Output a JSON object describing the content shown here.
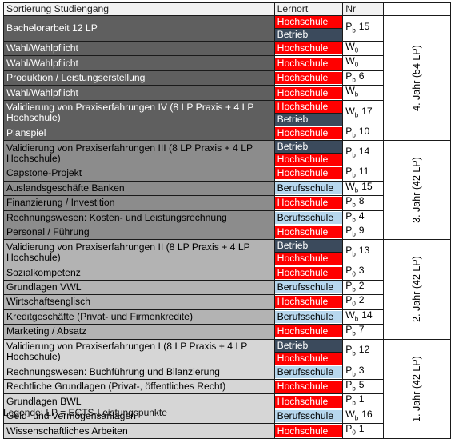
{
  "header": {
    "module": "Sortierung Studiengang",
    "location": "Lernort",
    "nr": "Nr"
  },
  "colors": {
    "hochschule": "#ff0000",
    "berufsschule": "#b7d7ee",
    "betrieb": "#3b4a5c"
  },
  "rows": [
    {
      "module": "Bachelorarbeit 12 LP",
      "level": 4,
      "locations": [
        {
          "label": "Hochschule",
          "type": "hs"
        },
        {
          "label": "Betrieb",
          "type": "bt"
        }
      ],
      "nr": "P",
      "nr_sub": "b",
      "nr_num": "15"
    },
    {
      "module": "Wahl/Wahlpflicht",
      "level": 4,
      "locations": [
        {
          "label": "Hochschule",
          "type": "hs"
        }
      ],
      "nr": "W",
      "nr_sub": "0",
      "nr_num": ""
    },
    {
      "module": "Wahl/Wahlpflicht",
      "level": 4,
      "locations": [
        {
          "label": "Hochschule",
          "type": "hs"
        }
      ],
      "nr": "W",
      "nr_sub": "0",
      "nr_num": ""
    },
    {
      "module": "Produktion / Leistungserstellung",
      "level": 4,
      "locations": [
        {
          "label": "Hochschule",
          "type": "hs"
        }
      ],
      "nr": "P",
      "nr_sub": "b",
      "nr_num": "6"
    },
    {
      "module": "Wahl/Wahlpflicht",
      "level": 4,
      "locations": [
        {
          "label": "Hochschule",
          "type": "hs"
        }
      ],
      "nr": "W",
      "nr_sub": "b",
      "nr_num": ""
    },
    {
      "module": "Validierung von Praxiserfahrungen IV (8 LP Praxis + 4 LP Hochschule)",
      "level": 4,
      "locations": [
        {
          "label": "Hochschule",
          "type": "hs"
        },
        {
          "label": "Betrieb",
          "type": "bt"
        }
      ],
      "nr": "W",
      "nr_sub": "b",
      "nr_num": "17"
    },
    {
      "module": "Planspiel",
      "level": 4,
      "locations": [
        {
          "label": "Hochschule",
          "type": "hs"
        }
      ],
      "nr": "P",
      "nr_sub": "b",
      "nr_num": "10"
    },
    {
      "module": "Validierung von Praxiserfahrungen III (8 LP Praxis + 4 LP Hochschule)",
      "level": 3,
      "locations": [
        {
          "label": "Betrieb",
          "type": "bt"
        },
        {
          "label": "Hochschule",
          "type": "hs"
        }
      ],
      "nr": "P",
      "nr_sub": "b",
      "nr_num": "14"
    },
    {
      "module": "Capstone-Projekt",
      "level": 3,
      "locations": [
        {
          "label": "Hochschule",
          "type": "hs"
        }
      ],
      "nr": "P",
      "nr_sub": "b",
      "nr_num": "11"
    },
    {
      "module": "Auslandsgeschäfte Banken",
      "level": 3,
      "locations": [
        {
          "label": "Berufsschule",
          "type": "bs"
        }
      ],
      "nr": "W",
      "nr_sub": "b",
      "nr_num": "15"
    },
    {
      "module": "Finanzierung / Investition",
      "level": 3,
      "locations": [
        {
          "label": "Hochschule",
          "type": "hs"
        }
      ],
      "nr": "P",
      "nr_sub": "b",
      "nr_num": "8"
    },
    {
      "module": "Rechnungswesen: Kosten- und Leistungsrechnung",
      "level": 3,
      "locations": [
        {
          "label": "Berufsschule",
          "type": "bs"
        }
      ],
      "nr": "P",
      "nr_sub": "b",
      "nr_num": "4"
    },
    {
      "module": "Personal / Führung",
      "level": 3,
      "locations": [
        {
          "label": "Hochschule",
          "type": "hs"
        }
      ],
      "nr": "P",
      "nr_sub": "b",
      "nr_num": "9"
    },
    {
      "module": "Validierung von Praxiserfahrungen II (8 LP Praxis + 4 LP Hochschule)",
      "level": 2,
      "locations": [
        {
          "label": "Betrieb",
          "type": "bt"
        },
        {
          "label": "Hochschule",
          "type": "hs"
        }
      ],
      "nr": "P",
      "nr_sub": "b",
      "nr_num": "13"
    },
    {
      "module": "Sozialkompetenz",
      "level": 2,
      "locations": [
        {
          "label": "Hochschule",
          "type": "hs"
        }
      ],
      "nr": "P",
      "nr_sub": "0",
      "nr_num": "3"
    },
    {
      "module": "Grundlagen VWL",
      "level": 2,
      "locations": [
        {
          "label": "Berufsschule",
          "type": "bs"
        }
      ],
      "nr": "P",
      "nr_sub": "b",
      "nr_num": "2"
    },
    {
      "module": "Wirtschaftsenglisch",
      "level": 2,
      "locations": [
        {
          "label": "Hochschule",
          "type": "hs"
        }
      ],
      "nr": "P",
      "nr_sub": "0",
      "nr_num": "2"
    },
    {
      "module": "Kreditgeschäfte (Privat- und Firmenkredite)",
      "level": 2,
      "locations": [
        {
          "label": "Berufsschule",
          "type": "bs"
        }
      ],
      "nr": "W",
      "nr_sub": "b",
      "nr_num": "14"
    },
    {
      "module": "Marketing / Absatz",
      "level": 2,
      "locations": [
        {
          "label": "Hochschule",
          "type": "hs"
        }
      ],
      "nr": "P",
      "nr_sub": "b",
      "nr_num": "7"
    },
    {
      "module": "Validierung von Praxiserfahrungen I (8 LP Praxis + 4 LP Hochschule)",
      "level": 1,
      "locations": [
        {
          "label": "Betrieb",
          "type": "bt"
        },
        {
          "label": "Hochschule",
          "type": "hs"
        }
      ],
      "nr": "P",
      "nr_sub": "b",
      "nr_num": "12"
    },
    {
      "module": "Rechnungswesen: Buchführung und Bilanzierung",
      "level": 1,
      "locations": [
        {
          "label": "Berufsschule",
          "type": "bs"
        }
      ],
      "nr": "P",
      "nr_sub": "b",
      "nr_num": "3"
    },
    {
      "module": "Rechtliche Grundlagen (Privat-, öffentliches Recht)",
      "level": 1,
      "locations": [
        {
          "label": "Hochschule",
          "type": "hs"
        }
      ],
      "nr": "P",
      "nr_sub": "b",
      "nr_num": "5"
    },
    {
      "module": "Grundlagen BWL",
      "level": 1,
      "locations": [
        {
          "label": "Hochschule",
          "type": "hs"
        }
      ],
      "nr": "P",
      "nr_sub": "b",
      "nr_num": "1"
    },
    {
      "module": "Geld- und Vermögensanlagen",
      "level": 1,
      "locations": [
        {
          "label": "Berufsschule",
          "type": "bs"
        }
      ],
      "nr": "W",
      "nr_sub": "b",
      "nr_num": "16"
    },
    {
      "module": "Wissenschaftliches Arbeiten",
      "level": 1,
      "locations": [
        {
          "label": "Hochschule",
          "type": "hs"
        }
      ],
      "nr": "P",
      "nr_sub": "0",
      "nr_num": "1"
    }
  ],
  "years": [
    {
      "label": "4. Jahr (54 LP)",
      "rows": 7
    },
    {
      "label": "3. Jahr (42 LP)",
      "rows": 6
    },
    {
      "label": "2. Jahr (42 LP)",
      "rows": 6
    },
    {
      "label": "1. Jahr (42 LP)",
      "rows": 6
    }
  ],
  "legend": "Legende: LP = ECTS-Leistungspunkte"
}
